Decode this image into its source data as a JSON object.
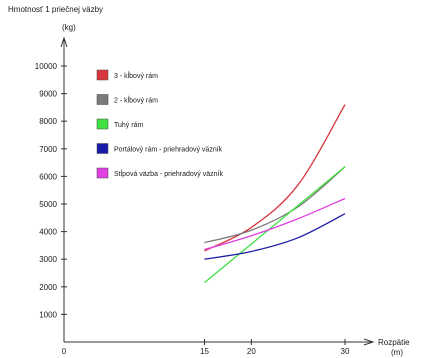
{
  "chart_data": {
    "type": "line",
    "ylabel_lines": [
      "Hmotnosť 1 priečnej väzby",
      "(kg)"
    ],
    "xlabel_lines": [
      "Rozpätie",
      "(m)"
    ],
    "xlim": [
      0,
      30
    ],
    "ylim": [
      0,
      10000
    ],
    "x_ticks": [
      0,
      15,
      20,
      30
    ],
    "y_ticks": [
      1000,
      2000,
      3000,
      4000,
      5000,
      6000,
      7000,
      8000,
      9000,
      10000
    ],
    "grid": false,
    "legend_position": "top-left",
    "series": [
      {
        "name": "3 - kĺbový rám",
        "color": "#d9363e",
        "x": [
          15,
          20,
          25,
          30
        ],
        "y": [
          3300,
          4150,
          5700,
          8600
        ]
      },
      {
        "name": "2 - kĺbový rám",
        "color": "#7a7a7a",
        "x": [
          15,
          20,
          25,
          30
        ],
        "y": [
          3600,
          4050,
          4900,
          6350
        ]
      },
      {
        "name": "Tuhý rám",
        "color": "#3fe03f",
        "x": [
          15,
          30
        ],
        "y": [
          2150,
          6350
        ]
      },
      {
        "name": "Portálový rám - priehradový väzník",
        "color": "#1a1aa8",
        "x": [
          15,
          20,
          25,
          30
        ],
        "y": [
          3000,
          3280,
          3780,
          4650
        ]
      },
      {
        "name": "Stĺpová väzba - priehradový väzník",
        "color": "#e23ee2",
        "x": [
          15,
          20,
          25,
          30
        ],
        "y": [
          3350,
          3850,
          4470,
          5200
        ]
      }
    ]
  }
}
